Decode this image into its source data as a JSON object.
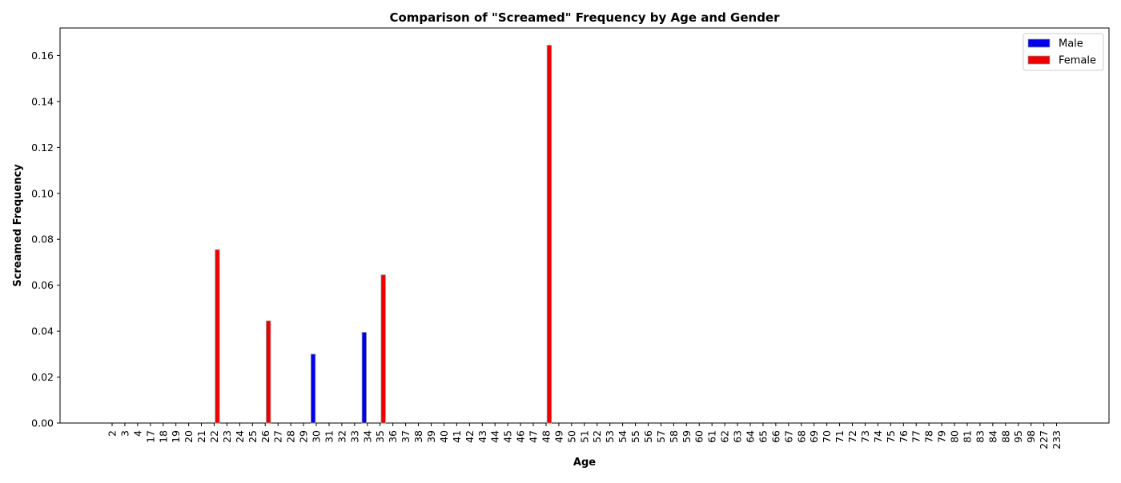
{
  "chart_data": {
    "type": "bar",
    "title": "Comparison of \"Screamed\" Frequency by Age and Gender",
    "xlabel": "Age",
    "ylabel": "Screamed Frequency",
    "ylim": [
      0,
      0.172
    ],
    "yticks": [
      0.0,
      0.02,
      0.04,
      0.06,
      0.08,
      0.1,
      0.12,
      0.14,
      0.16
    ],
    "ytick_labels": [
      "0.00",
      "0.02",
      "0.04",
      "0.06",
      "0.08",
      "0.10",
      "0.12",
      "0.14",
      "0.16"
    ],
    "grid": false,
    "legend_position": "top-right",
    "categories": [
      "2",
      "3",
      "4",
      "17",
      "18",
      "19",
      "20",
      "21",
      "22",
      "23",
      "24",
      "25",
      "26",
      "27",
      "28",
      "29",
      "30",
      "31",
      "32",
      "33",
      "34",
      "35",
      "36",
      "37",
      "38",
      "39",
      "40",
      "41",
      "42",
      "43",
      "44",
      "45",
      "46",
      "47",
      "48",
      "49",
      "50",
      "51",
      "52",
      "53",
      "54",
      "55",
      "56",
      "57",
      "58",
      "59",
      "60",
      "61",
      "62",
      "63",
      "64",
      "65",
      "66",
      "67",
      "68",
      "69",
      "70",
      "71",
      "72",
      "73",
      "74",
      "75",
      "76",
      "77",
      "78",
      "79",
      "80",
      "81",
      "83",
      "84",
      "88",
      "95",
      "98",
      "227",
      "233"
    ],
    "series": [
      {
        "name": "Male",
        "color": "#0000ee",
        "points": [
          {
            "category": "30",
            "value": 0.03
          },
          {
            "category": "34",
            "value": 0.0395
          }
        ]
      },
      {
        "name": "Female",
        "color": "#ee0000",
        "points": [
          {
            "category": "22",
            "value": 0.0755
          },
          {
            "category": "26",
            "value": 0.0445
          },
          {
            "category": "35",
            "value": 0.0645
          },
          {
            "category": "48",
            "value": 0.1645
          }
        ]
      }
    ]
  }
}
